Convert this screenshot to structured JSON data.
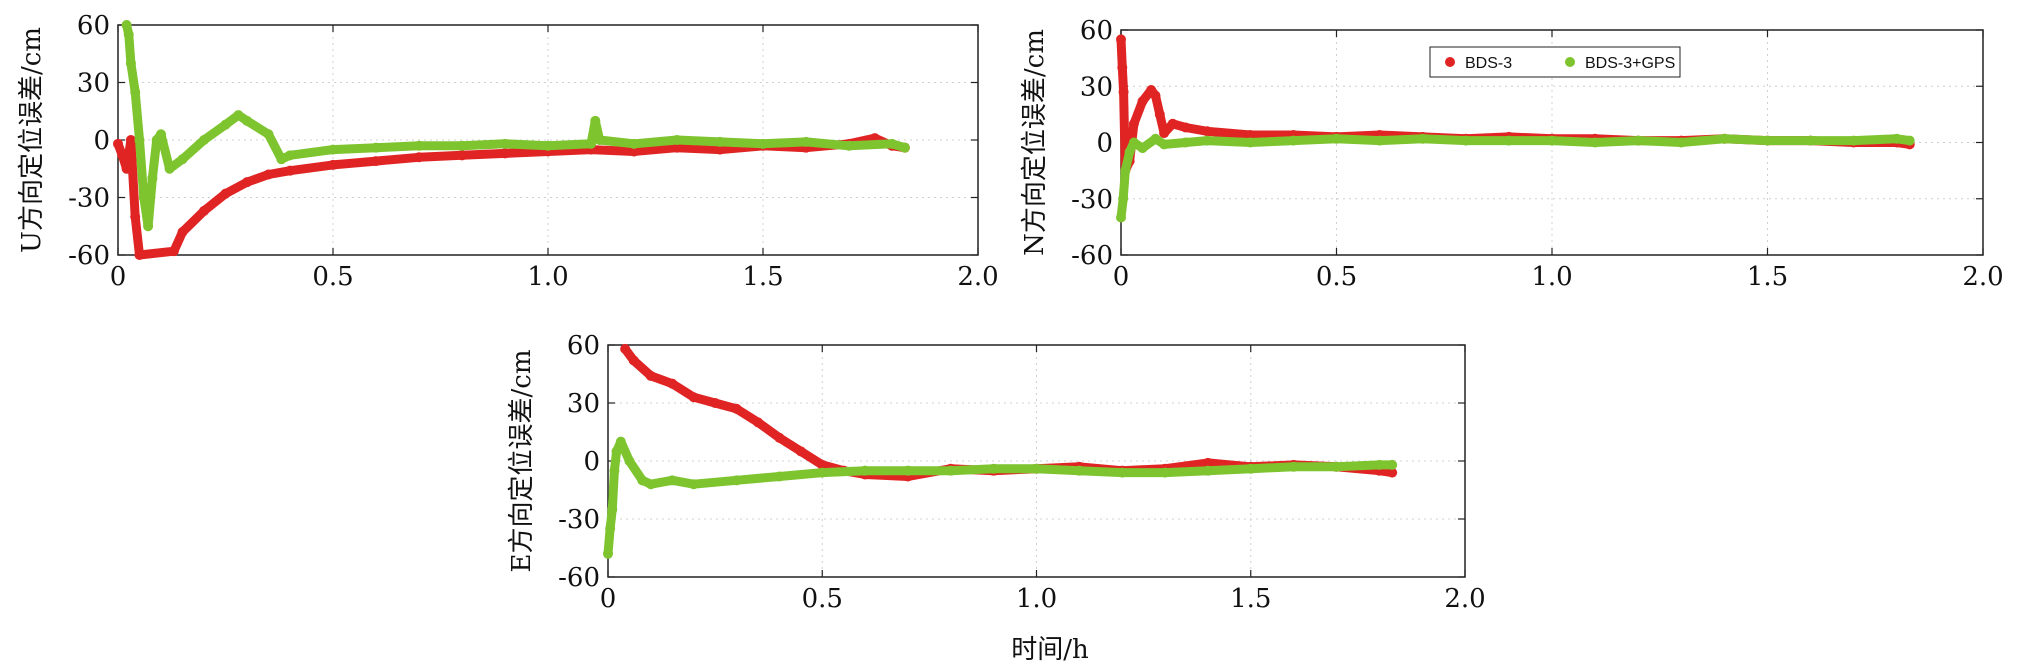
{
  "colors": {
    "bds3": "#e02424",
    "bds3_gps": "#7dc42e",
    "grid": "#d0d0d0",
    "axis": "#222222"
  },
  "xaxis_title": "时间/h",
  "legend": {
    "items": [
      {
        "label": "BDS-3",
        "color": "#e02424"
      },
      {
        "label": "BDS-3+GPS",
        "color": "#7dc42e"
      }
    ],
    "placement": "top-center (N panel)"
  },
  "chart_data": [
    {
      "type": "scatter",
      "panel": "U",
      "ylabel": "U方向定位误差/cm",
      "xlim": [
        0,
        2.0
      ],
      "ylim": [
        -60,
        60
      ],
      "xticks": [
        "0",
        "0.5",
        "1.0",
        "1.5",
        "2.0"
      ],
      "yticks": [
        "60",
        "30",
        "0",
        "-30",
        "-60"
      ],
      "grid": true,
      "series": [
        {
          "name": "BDS-3",
          "x": [
            0.0,
            0.01,
            0.02,
            0.03,
            0.04,
            0.05,
            0.13,
            0.15,
            0.2,
            0.25,
            0.3,
            0.35,
            0.4,
            0.5,
            0.6,
            0.7,
            0.8,
            0.9,
            1.0,
            1.1,
            1.2,
            1.3,
            1.4,
            1.5,
            1.6,
            1.7,
            1.76,
            1.8,
            1.83
          ],
          "values": [
            -2,
            -8,
            -15,
            0,
            -40,
            -60,
            -58,
            -48,
            -37,
            -28,
            -22,
            -18,
            -16,
            -13,
            -11,
            -9,
            -8,
            -7,
            -6,
            -5,
            -6,
            -4,
            -5,
            -3,
            -4,
            -2,
            1,
            -3,
            -4
          ]
        },
        {
          "name": "BDS-3+GPS",
          "x": [
            0.02,
            0.025,
            0.03,
            0.04,
            0.05,
            0.06,
            0.07,
            0.08,
            0.09,
            0.1,
            0.12,
            0.15,
            0.2,
            0.25,
            0.28,
            0.3,
            0.35,
            0.38,
            0.4,
            0.5,
            0.6,
            0.7,
            0.8,
            0.9,
            1.0,
            1.1,
            1.11,
            1.12,
            1.2,
            1.3,
            1.4,
            1.5,
            1.6,
            1.7,
            1.8,
            1.83
          ],
          "values": [
            60,
            55,
            40,
            25,
            0,
            -30,
            -45,
            -20,
            0,
            3,
            -15,
            -10,
            0,
            8,
            13,
            10,
            3,
            -10,
            -8,
            -5,
            -4,
            -3,
            -3,
            -2,
            -3,
            -2,
            10,
            0,
            -2,
            0,
            -1,
            -2,
            -1,
            -3,
            -2,
            -4
          ]
        }
      ]
    },
    {
      "type": "scatter",
      "panel": "N",
      "ylabel": "N方向定位误差/cm",
      "xlim": [
        0,
        2.0
      ],
      "ylim": [
        -60,
        60
      ],
      "xticks": [
        "0",
        "0.5",
        "1.0",
        "1.5",
        "2.0"
      ],
      "yticks": [
        "60",
        "30",
        "0",
        "-30",
        "-60"
      ],
      "grid": true,
      "series": [
        {
          "name": "BDS-3",
          "x": [
            0.0,
            0.003,
            0.006,
            0.01,
            0.02,
            0.03,
            0.05,
            0.07,
            0.08,
            0.09,
            0.1,
            0.12,
            0.15,
            0.2,
            0.3,
            0.4,
            0.5,
            0.6,
            0.7,
            0.8,
            0.9,
            1.0,
            1.1,
            1.2,
            1.3,
            1.4,
            1.5,
            1.6,
            1.7,
            1.8,
            1.83
          ],
          "values": [
            55,
            40,
            27,
            -15,
            -10,
            10,
            22,
            28,
            25,
            15,
            5,
            10,
            8,
            6,
            4,
            4,
            3,
            4,
            3,
            2,
            3,
            2,
            2,
            1,
            1,
            2,
            1,
            1,
            0,
            0,
            -1
          ]
        },
        {
          "name": "BDS-3+GPS",
          "x": [
            0.0,
            0.005,
            0.01,
            0.02,
            0.03,
            0.05,
            0.08,
            0.1,
            0.15,
            0.2,
            0.3,
            0.4,
            0.5,
            0.6,
            0.7,
            0.8,
            0.9,
            1.0,
            1.1,
            1.2,
            1.3,
            1.4,
            1.5,
            1.6,
            1.7,
            1.8,
            1.83
          ],
          "values": [
            -40,
            -30,
            -15,
            -5,
            0,
            -3,
            2,
            -1,
            0,
            1,
            0,
            1,
            2,
            1,
            2,
            1,
            1,
            1,
            0,
            1,
            0,
            2,
            1,
            1,
            1,
            2,
            1
          ]
        }
      ]
    },
    {
      "type": "scatter",
      "panel": "E",
      "ylabel": "E方向定位误差/cm",
      "xlabel": "时间/h",
      "xlim": [
        0,
        2.0
      ],
      "ylim": [
        -60,
        60
      ],
      "xticks": [
        "0",
        "0.5",
        "1.0",
        "1.5",
        "2.0"
      ],
      "yticks": [
        "60",
        "30",
        "0",
        "-30",
        "-60"
      ],
      "grid": true,
      "series": [
        {
          "name": "BDS-3",
          "x": [
            0.04,
            0.06,
            0.1,
            0.15,
            0.2,
            0.25,
            0.3,
            0.35,
            0.4,
            0.45,
            0.5,
            0.55,
            0.6,
            0.7,
            0.8,
            0.9,
            1.0,
            1.1,
            1.2,
            1.3,
            1.4,
            1.5,
            1.6,
            1.7,
            1.8,
            1.83
          ],
          "values": [
            58,
            52,
            44,
            40,
            33,
            30,
            27,
            20,
            12,
            5,
            -2,
            -5,
            -7,
            -8,
            -4,
            -5,
            -4,
            -3,
            -5,
            -4,
            -1,
            -3,
            -2,
            -3,
            -5,
            -6
          ]
        },
        {
          "name": "BDS-3+GPS",
          "x": [
            0.0,
            0.005,
            0.01,
            0.015,
            0.02,
            0.03,
            0.05,
            0.08,
            0.1,
            0.15,
            0.2,
            0.3,
            0.4,
            0.5,
            0.6,
            0.7,
            0.8,
            0.9,
            1.0,
            1.1,
            1.2,
            1.3,
            1.4,
            1.5,
            1.6,
            1.7,
            1.8,
            1.83
          ],
          "values": [
            -48,
            -35,
            -25,
            -5,
            5,
            10,
            0,
            -10,
            -12,
            -10,
            -12,
            -10,
            -8,
            -6,
            -5,
            -5,
            -5,
            -4,
            -4,
            -5,
            -6,
            -6,
            -5,
            -4,
            -3,
            -3,
            -2,
            -2
          ]
        }
      ]
    }
  ]
}
